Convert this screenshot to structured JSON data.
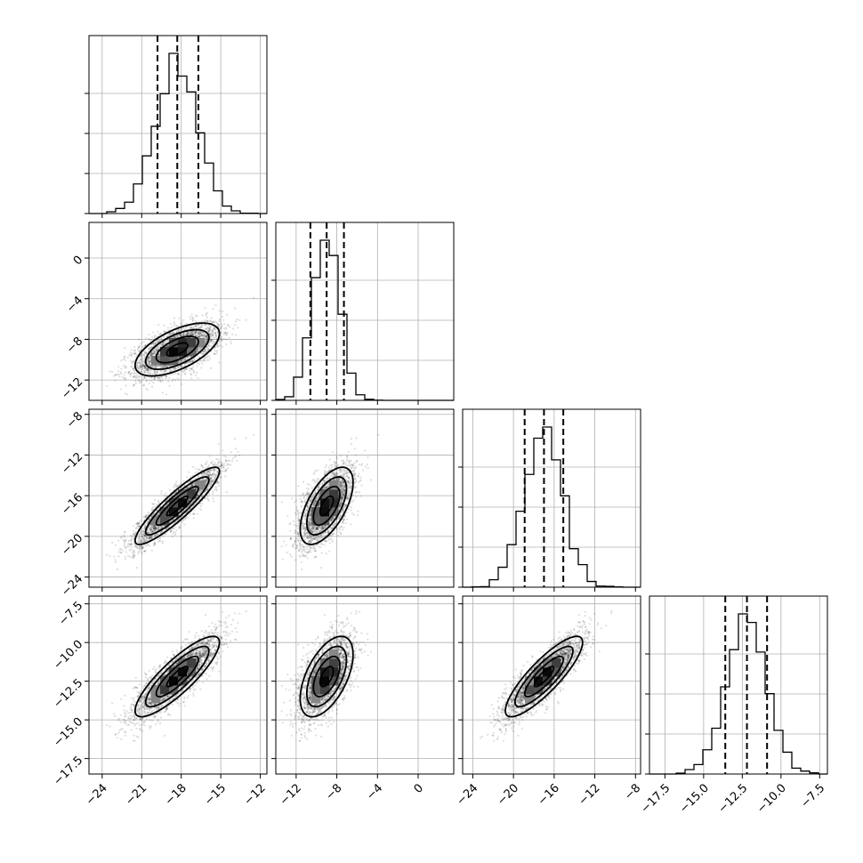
{
  "chart_data": {
    "type": "corner",
    "n_params": 4,
    "quantiles": [
      0.16,
      0.5,
      0.84
    ],
    "params": [
      {
        "index": 0,
        "range": [
          -25,
          -11.5
        ],
        "ticks": [
          -24,
          -21,
          -18,
          -15,
          -12
        ],
        "tick_labels": [
          "−24",
          "−21",
          "−18",
          "−15",
          "−12"
        ],
        "mean": -18.3,
        "sd": 1.6,
        "quantile_values": [
          -19.8,
          -18.3,
          -16.7
        ]
      },
      {
        "index": 1,
        "range": [
          -14,
          3.5
        ],
        "ticks": [
          -12,
          -8,
          -4,
          0
        ],
        "tick_labels": [
          "−12",
          "−8",
          "−4",
          "0"
        ],
        "mean": -9.0,
        "sd": 1.3,
        "quantile_values": [
          -10.6,
          -9.0,
          -7.3
        ]
      },
      {
        "index": 2,
        "range": [
          -25,
          -7.5
        ],
        "ticks": [
          -24,
          -20,
          -16,
          -12,
          -8
        ],
        "tick_labels": [
          "−24",
          "−20",
          "−16",
          "−12",
          "−8"
        ],
        "mean": -17.0,
        "sd": 1.9,
        "quantile_values": [
          -18.9,
          -17.0,
          -15.1
        ]
      },
      {
        "index": 3,
        "range": [
          -18.5,
          -7
        ],
        "ticks": [
          -17.5,
          -15.0,
          -12.5,
          -10.0,
          -7.5
        ],
        "tick_labels": [
          "−17.5",
          "−15.0",
          "−12.5",
          "−10.0",
          "−7.5"
        ],
        "mean": -12.2,
        "sd": 1.3,
        "quantile_values": [
          -13.6,
          -12.2,
          -10.9
        ]
      }
    ],
    "correlation": [
      [
        1.0,
        0.6,
        0.9,
        0.85
      ],
      [
        0.6,
        1.0,
        0.6,
        0.55
      ],
      [
        0.9,
        0.6,
        1.0,
        0.85
      ],
      [
        0.85,
        0.55,
        0.85,
        1.0
      ]
    ],
    "contour_levels_sigma": [
      0.5,
      1.0,
      1.5,
      2.0
    ],
    "grid": true
  }
}
